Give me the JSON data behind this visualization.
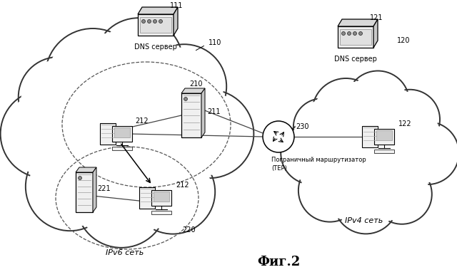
{
  "title": "Фиг.2",
  "bg_color": "#ffffff",
  "ipv6_label": "IPv6 сеть",
  "ipv4_label": "IPv4 сеть",
  "dns_left_label": "DNS сервер",
  "dns_right_label": "DNS сервер",
  "router_label1": "Пограничный маршрутизатор",
  "router_label2": "(ТЕР)"
}
